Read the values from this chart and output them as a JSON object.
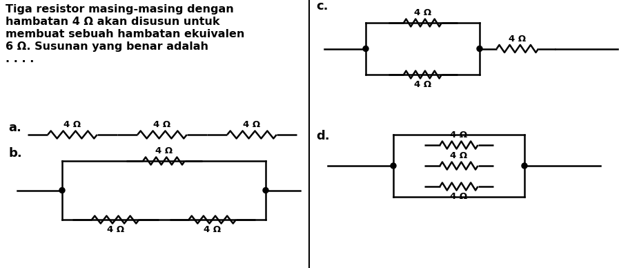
{
  "bg_color": "#ffffff",
  "text_color": "#000000",
  "line_color": "#000000",
  "problem_text_line1": "Tiga resistor masing-masing dengan",
  "problem_text_line2": "hambatan 4 Ω akan disusun untuk",
  "problem_text_line3": "membuat sebuah hambatan ekuivalen",
  "problem_text_line4": "6 Ω. Susunan yang benar adalah",
  "problem_text_line5": ". . . .",
  "label_a": "a.",
  "label_b": "b.",
  "label_c": "c.",
  "label_d": "d.",
  "resistor_label": "4 Ω",
  "font_size_problem": 11.5,
  "font_size_label": 13,
  "font_size_resistor": 9.5
}
